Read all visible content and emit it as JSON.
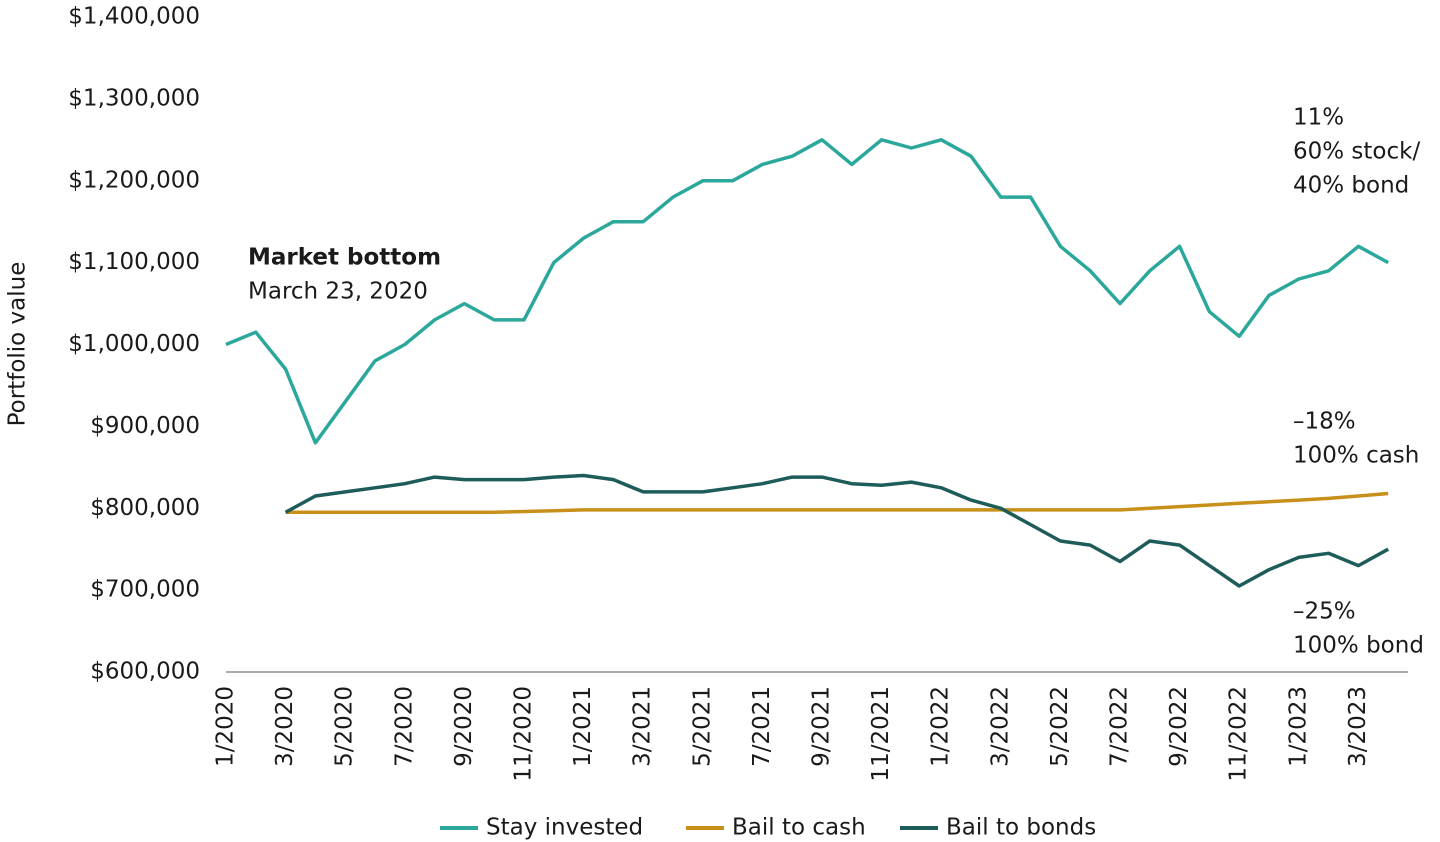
{
  "chart_data": {
    "type": "line",
    "y_label": "Portfolio value",
    "x": [
      "1/2020",
      "2/2020",
      "3/2020",
      "4/2020",
      "5/2020",
      "6/2020",
      "7/2020",
      "8/2020",
      "9/2020",
      "10/2020",
      "11/2020",
      "12/2020",
      "1/2021",
      "2/2021",
      "3/2021",
      "4/2021",
      "5/2021",
      "6/2021",
      "7/2021",
      "8/2021",
      "9/2021",
      "10/2021",
      "11/2021",
      "12/2021",
      "1/2022",
      "2/2022",
      "3/2022",
      "4/2022",
      "5/2022",
      "6/2022",
      "7/2022",
      "8/2022",
      "9/2022",
      "10/2022",
      "11/2022",
      "12/2022",
      "1/2023",
      "2/2023",
      "3/2023",
      "4/2023"
    ],
    "xticks": [
      "1/2020",
      "3/2020",
      "5/2020",
      "7/2020",
      "9/2020",
      "11/2020",
      "1/2021",
      "3/2021",
      "5/2021",
      "7/2021",
      "9/2021",
      "11/2021",
      "1/2022",
      "3/2022",
      "5/2022",
      "7/2022",
      "9/2022",
      "11/2022",
      "1/2023",
      "3/2023"
    ],
    "series": [
      {
        "name": "Stay invested",
        "color": "#2ba89b",
        "values": [
          1000000,
          1015000,
          970000,
          880000,
          930000,
          980000,
          1000000,
          1030000,
          1050000,
          1030000,
          1030000,
          1100000,
          1130000,
          1150000,
          1150000,
          1180000,
          1200000,
          1200000,
          1220000,
          1230000,
          1250000,
          1220000,
          1250000,
          1240000,
          1250000,
          1230000,
          1180000,
          1180000,
          1120000,
          1090000,
          1050000,
          1090000,
          1120000,
          1040000,
          1010000,
          1060000,
          1080000,
          1090000,
          1120000,
          1100000
        ]
      },
      {
        "name": "Bail to cash",
        "color": "#c8901a",
        "values": [
          null,
          null,
          795000,
          795000,
          795000,
          795000,
          795000,
          795000,
          795000,
          795000,
          796000,
          797000,
          798000,
          798000,
          798000,
          798000,
          798000,
          798000,
          798000,
          798000,
          798000,
          798000,
          798000,
          798000,
          798000,
          798000,
          798000,
          798000,
          798000,
          798000,
          798000,
          800000,
          802000,
          804000,
          806000,
          808000,
          810000,
          812000,
          815000,
          818000
        ]
      },
      {
        "name": "Bail to bonds",
        "color": "#1e5c59",
        "values": [
          null,
          null,
          795000,
          815000,
          820000,
          825000,
          830000,
          838000,
          835000,
          835000,
          835000,
          838000,
          840000,
          835000,
          820000,
          820000,
          820000,
          825000,
          830000,
          838000,
          838000,
          830000,
          828000,
          832000,
          825000,
          810000,
          800000,
          780000,
          760000,
          755000,
          735000,
          760000,
          755000,
          730000,
          705000,
          725000,
          740000,
          745000,
          730000,
          750000
        ]
      }
    ],
    "ylim": [
      600000,
      1400000
    ],
    "yticks": [
      {
        "value": 600000,
        "label": "$600,000"
      },
      {
        "value": 700000,
        "label": "$700,000"
      },
      {
        "value": 800000,
        "label": "$800,000"
      },
      {
        "value": 900000,
        "label": "$900,000"
      },
      {
        "value": 1000000,
        "label": "$1,000,000"
      },
      {
        "value": 1100000,
        "label": "$1,100,000"
      },
      {
        "value": 1200000,
        "label": "$1,200,000"
      },
      {
        "value": 1300000,
        "label": "$1,300,000"
      },
      {
        "value": 1400000,
        "label": "$1,400,000"
      }
    ],
    "annotations": [
      "Market bottom",
      "March 23, 2020",
      "11%",
      "60% stock/",
      "40% bond",
      "–18%",
      "100% cash",
      "–25%",
      "100% bond"
    ],
    "legend": "bottom"
  }
}
